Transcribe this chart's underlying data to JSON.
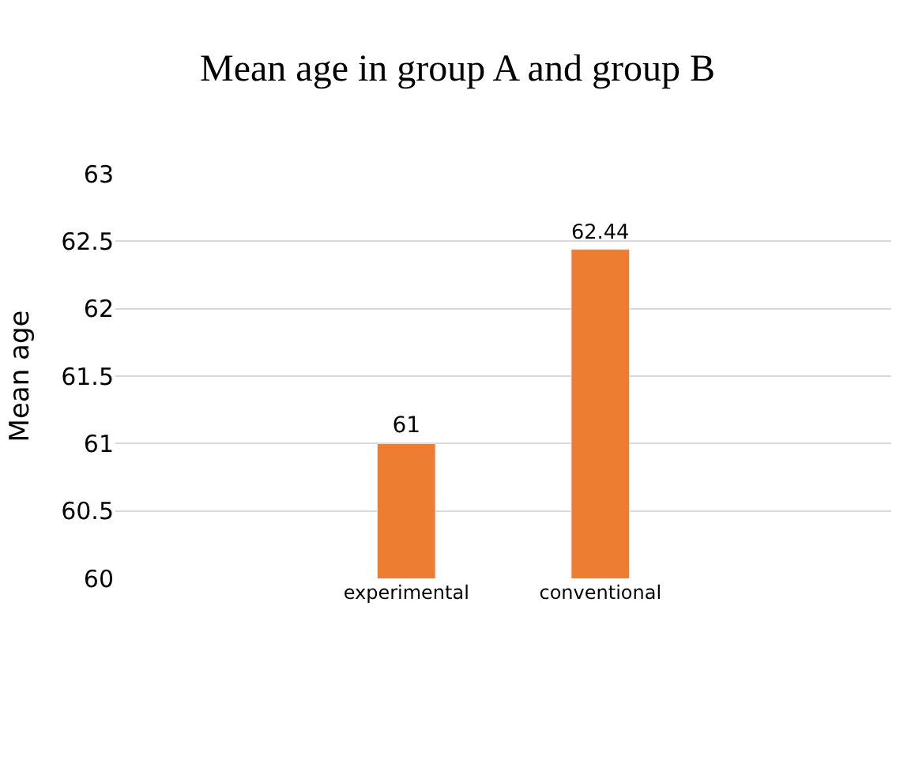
{
  "chart_data": {
    "type": "bar",
    "title": "Mean age in group A and group B",
    "ylabel": "Mean age",
    "categories": [
      null,
      "experimental",
      "conventional",
      null
    ],
    "values": [
      null,
      61,
      62.44,
      null
    ],
    "color": "#ed7d31",
    "ylim": [
      60,
      63
    ],
    "yticks": [
      60,
      60.5,
      61,
      61.5,
      62,
      62.5,
      63
    ],
    "grid": "y",
    "data_labels": true
  }
}
